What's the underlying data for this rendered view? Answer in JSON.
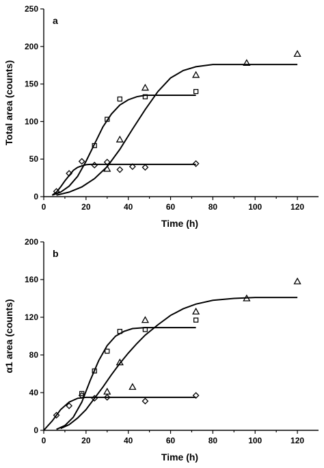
{
  "chart_data": [
    {
      "type": "scatter",
      "panel_label": "a",
      "xlabel": "Time (h)",
      "ylabel": "Total area (counts)",
      "xlim": [
        0,
        130
      ],
      "ylim": [
        0,
        250
      ],
      "x_ticks": [
        0,
        20,
        40,
        60,
        80,
        100,
        120
      ],
      "y_ticks": [
        0,
        50,
        100,
        150,
        200,
        250
      ],
      "x_tick_labels": [
        "0",
        "20",
        "40",
        "60",
        "80",
        "100",
        "120"
      ],
      "y_tick_labels": [
        "0",
        "50",
        "100",
        "150",
        "200",
        "250"
      ],
      "grid": false,
      "series": [
        {
          "marker": "diamond",
          "points": [
            [
              6,
              7
            ],
            [
              12,
              31
            ],
            [
              18,
              47
            ],
            [
              24,
              42
            ],
            [
              30,
              46
            ],
            [
              36,
              36
            ],
            [
              42,
              40
            ],
            [
              48,
              39
            ],
            [
              72,
              44
            ]
          ],
          "fit": {
            "x": [
              4,
              6,
              8,
              10,
              12,
              14,
              16,
              18,
              20,
              22,
              24,
              28,
              34,
              40,
              50,
              60,
              72
            ],
            "y": [
              2,
              6,
              13,
              21,
              28,
              35,
              39,
              41,
              42.5,
              43,
              43,
              43,
              43,
              43,
              43,
              43,
              43
            ]
          }
        },
        {
          "marker": "square",
          "points": [
            [
              24,
              68
            ],
            [
              30,
              103
            ],
            [
              36,
              130
            ],
            [
              48,
              133
            ],
            [
              72,
              140
            ]
          ],
          "fit": {
            "x": [
              4,
              8,
              12,
              16,
              20,
              24,
              28,
              32,
              36,
              40,
              44,
              48,
              56,
              64,
              72
            ],
            "y": [
              2,
              6,
              14,
              27,
              47,
              70,
              93,
              110,
              122,
              129,
              133,
              135,
              135,
              135,
              135
            ]
          }
        },
        {
          "marker": "triangle",
          "points": [
            [
              30,
              37
            ],
            [
              36,
              76
            ],
            [
              48,
              145
            ],
            [
              72,
              162
            ],
            [
              96,
              178
            ],
            [
              120,
              190
            ]
          ],
          "fit": {
            "x": [
              6,
              12,
              18,
              24,
              30,
              36,
              42,
              48,
              54,
              60,
              66,
              72,
              80,
              90,
              100,
              110,
              120
            ],
            "y": [
              2,
              6,
              13,
              24,
              40,
              63,
              90,
              116,
              140,
              158,
              168,
              173,
              176,
              176,
              176,
              176,
              176
            ]
          }
        }
      ]
    },
    {
      "type": "scatter",
      "panel_label": "b",
      "xlabel": "Time (h)",
      "ylabel": "α1 area (counts)",
      "xlim": [
        0,
        130
      ],
      "ylim": [
        0,
        200
      ],
      "x_ticks": [
        0,
        20,
        40,
        60,
        80,
        100,
        120
      ],
      "y_ticks": [
        0,
        40,
        80,
        120,
        160,
        200
      ],
      "x_tick_labels": [
        "0",
        "20",
        "40",
        "60",
        "80",
        "100",
        "120"
      ],
      "y_tick_labels": [
        "0",
        "40",
        "80",
        "120",
        "160",
        "200"
      ],
      "grid": false,
      "series": [
        {
          "marker": "diamond",
          "points": [
            [
              6,
              16
            ],
            [
              12,
              26
            ],
            [
              18,
              37
            ],
            [
              24,
              34
            ],
            [
              30,
              35
            ],
            [
              48,
              31
            ],
            [
              72,
              37
            ]
          ],
          "fit": {
            "x": [
              0,
              4,
              8,
              12,
              16,
              20,
              24,
              30,
              40,
              50,
              60,
              72
            ],
            "y": [
              0,
              10,
              22,
              30,
              34,
              35,
              35,
              35,
              35,
              35,
              35,
              35
            ]
          }
        },
        {
          "marker": "square",
          "points": [
            [
              18,
              39
            ],
            [
              24,
              63
            ],
            [
              30,
              84
            ],
            [
              36,
              105
            ],
            [
              48,
              107
            ],
            [
              72,
              117
            ]
          ],
          "fit": {
            "x": [
              6,
              10,
              14,
              18,
              22,
              26,
              30,
              34,
              38,
              42,
              48,
              56,
              64,
              72
            ],
            "y": [
              1,
              5,
              14,
              30,
              53,
              74,
              90,
              100,
              105,
              108,
              109,
              109,
              109,
              109
            ]
          }
        },
        {
          "marker": "triangle",
          "points": [
            [
              30,
              41
            ],
            [
              36,
              72
            ],
            [
              42,
              46
            ],
            [
              48,
              117
            ],
            [
              72,
              126
            ],
            [
              96,
              140
            ],
            [
              120,
              158
            ]
          ],
          "fit": {
            "x": [
              8,
              12,
              16,
              20,
              24,
              28,
              32,
              36,
              40,
              44,
              48,
              54,
              60,
              66,
              72,
              80,
              90,
              100,
              110,
              120
            ],
            "y": [
              2,
              6,
              13,
              22,
              34,
              46,
              59,
              71,
              82,
              92,
              101,
              112,
              122,
              129,
              134,
              138,
              140,
              141,
              141,
              141
            ]
          }
        }
      ]
    }
  ]
}
